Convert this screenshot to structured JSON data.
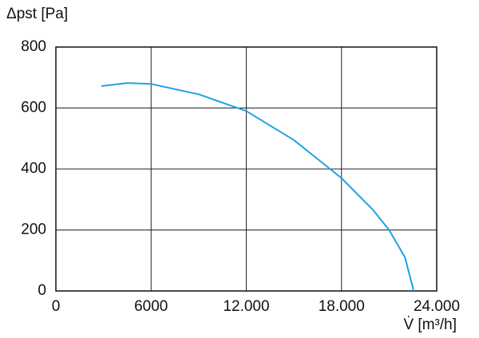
{
  "chart_data": {
    "type": "line",
    "y_label": "Δpst [Pa]",
    "x_label": "V̇ [m³/h]",
    "x": [
      2870,
      4500,
      6000,
      9000,
      12000,
      15000,
      18000,
      20000,
      21000,
      22000,
      22550
    ],
    "series": [
      {
        "name": "Δpst",
        "color": "#1ea0e6",
        "values": [
          672,
          682,
          679,
          645,
          590,
          495,
          370,
          265,
          200,
          110,
          0
        ]
      }
    ],
    "xlim": [
      0,
      24000
    ],
    "xticks": [
      0,
      6000,
      {
        "value": 12000,
        "label": "12.000"
      },
      {
        "value": 18000,
        "label": "18.000"
      },
      {
        "value": 24000,
        "label": "24.000"
      }
    ],
    "ylim": [
      0,
      800
    ],
    "yticks": [
      0,
      200,
      400,
      600,
      800
    ],
    "grid": true
  }
}
